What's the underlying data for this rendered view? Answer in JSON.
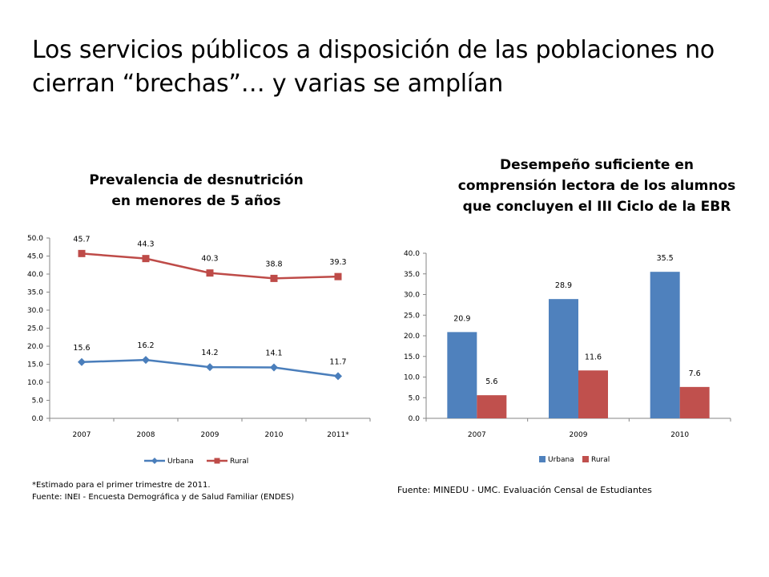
{
  "slide": {
    "title": "Los servicios públicos a disposición de las poblaciones no cierran “brechas”… y varias se amplían"
  },
  "footnotes": {
    "left_line1": "*Estimado para el primer trimestre de 2011.",
    "left_line2": "Fuente: INEI - Encuesta Demográfica y de Salud Familiar (ENDES)",
    "right": "Fuente: MINEDU - UMC. Evaluación Censal de Estudiantes"
  },
  "chart_data": [
    {
      "type": "line",
      "title": "Prevalencia de desnutrición en menores de 5 años",
      "title_lines": [
        "Prevalencia de desnutrición",
        "en menores de 5 años"
      ],
      "categories": [
        "2007",
        "2008",
        "2009",
        "2010",
        "2011*"
      ],
      "ylim": [
        0,
        50
      ],
      "yticks": [
        "0.0",
        "5.0",
        "10.0",
        "15.0",
        "20.0",
        "25.0",
        "30.0",
        "35.0",
        "40.0",
        "45.0",
        "50.0"
      ],
      "grid": false,
      "legend": "bottom",
      "series": [
        {
          "name": "Urbana",
          "color": "#4a7ebb",
          "marker": "diamond",
          "values": [
            15.6,
            16.2,
            14.2,
            14.1,
            11.7
          ]
        },
        {
          "name": "Rural",
          "color": "#be4b48",
          "marker": "square",
          "values": [
            45.7,
            44.3,
            40.3,
            38.8,
            39.3
          ]
        }
      ]
    },
    {
      "type": "bar",
      "title": "Desempeño suficiente en comprensión lectora de los alumnos que concluyen el III Ciclo de la EBR",
      "title_lines": [
        "Desempeño suficiente en",
        "comprensión lectora de los alumnos",
        "que concluyen el III Ciclo de la EBR"
      ],
      "categories": [
        "2007",
        "2009",
        "2010"
      ],
      "ylim": [
        0,
        40
      ],
      "yticks": [
        "0.0",
        "5.0",
        "10.0",
        "15.0",
        "20.0",
        "25.0",
        "30.0",
        "35.0",
        "40.0"
      ],
      "grid": false,
      "legend": "bottom",
      "series": [
        {
          "name": "Urbana",
          "color": "#4f81bd",
          "values": [
            20.9,
            28.9,
            35.5
          ]
        },
        {
          "name": "Rural",
          "color": "#c0504d",
          "values": [
            5.6,
            11.6,
            7.6
          ]
        }
      ]
    }
  ]
}
